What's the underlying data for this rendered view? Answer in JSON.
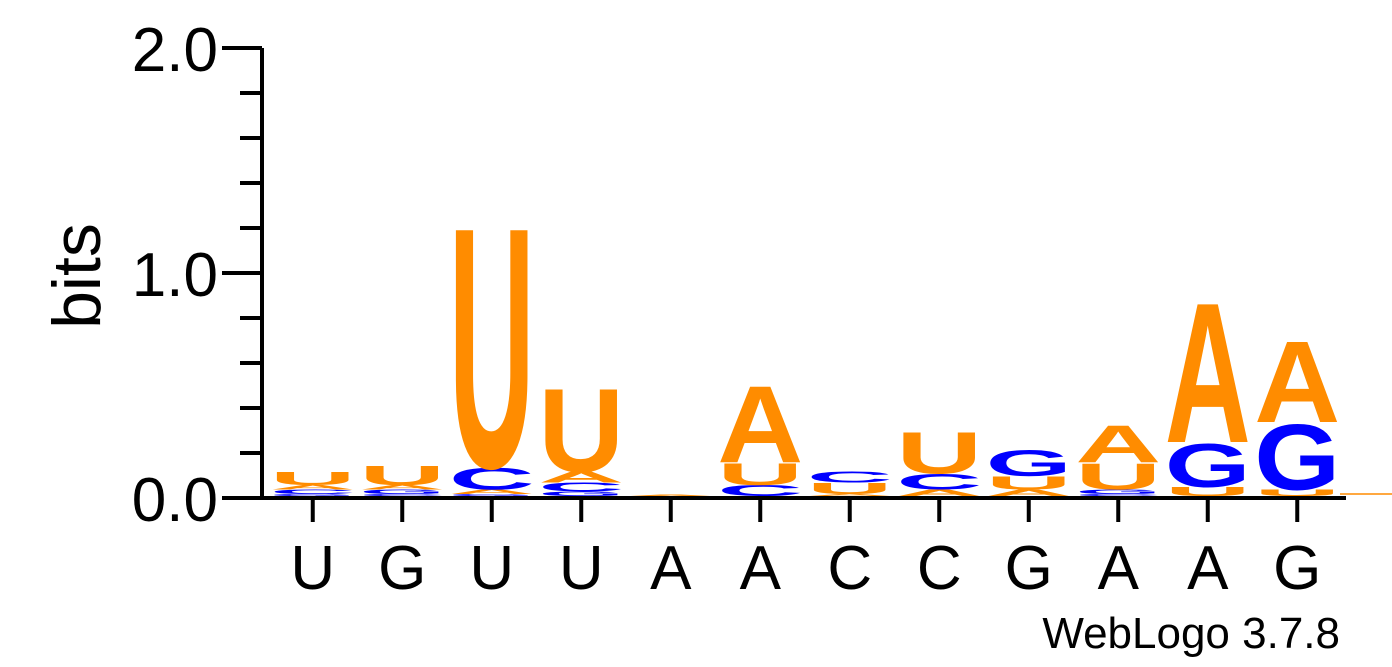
{
  "chart_data": {
    "type": "sequence-logo",
    "ylabel": "bits",
    "ylim": [
      0,
      2.0
    ],
    "y_ticks": [
      "0.0",
      "1.0",
      "2.0"
    ],
    "positions": [
      "U",
      "G",
      "U",
      "U",
      "A",
      "A",
      "C",
      "C",
      "G",
      "A",
      "A",
      "G"
    ],
    "colors": {
      "A": "#ff8c00",
      "U": "#ff8c00",
      "C": "#0000ff",
      "G": "#0000ff"
    },
    "stacks": [
      [
        {
          "letter": "G",
          "bits": 0.01
        },
        {
          "letter": "C",
          "bits": 0.02
        },
        {
          "letter": "A",
          "bits": 0.02
        },
        {
          "letter": "U",
          "bits": 0.06
        }
      ],
      [
        {
          "letter": "C",
          "bits": 0.01
        },
        {
          "letter": "G",
          "bits": 0.02
        },
        {
          "letter": "A",
          "bits": 0.02
        },
        {
          "letter": "U",
          "bits": 0.09
        }
      ],
      [
        {
          "letter": "G",
          "bits": 0.01
        },
        {
          "letter": "A",
          "bits": 0.02
        },
        {
          "letter": "C",
          "bits": 0.1
        },
        {
          "letter": "U",
          "bits": 1.1
        }
      ],
      [
        {
          "letter": "G",
          "bits": 0.02
        },
        {
          "letter": "C",
          "bits": 0.04
        },
        {
          "letter": "A",
          "bits": 0.05
        },
        {
          "letter": "U",
          "bits": 0.38
        }
      ],
      [
        {
          "letter": "A",
          "bits": 0.005
        }
      ],
      [
        {
          "letter": "C",
          "bits": 0.05
        },
        {
          "letter": "U",
          "bits": 0.1
        },
        {
          "letter": "A",
          "bits": 0.35
        }
      ],
      [
        {
          "letter": "A",
          "bits": 0.01
        },
        {
          "letter": "U",
          "bits": 0.05
        },
        {
          "letter": "C",
          "bits": 0.05
        }
      ],
      [
        {
          "letter": "A",
          "bits": 0.03
        },
        {
          "letter": "C",
          "bits": 0.07
        },
        {
          "letter": "U",
          "bits": 0.19
        }
      ],
      [
        {
          "letter": "A",
          "bits": 0.03
        },
        {
          "letter": "U",
          "bits": 0.06
        },
        {
          "letter": "G",
          "bits": 0.12
        }
      ],
      [
        {
          "letter": "C",
          "bits": 0.01
        },
        {
          "letter": "G",
          "bits": 0.02
        },
        {
          "letter": "U",
          "bits": 0.12
        },
        {
          "letter": "A",
          "bits": 0.17
        }
      ],
      [
        {
          "letter": "U",
          "bits": 0.04
        },
        {
          "letter": "G",
          "bits": 0.2
        },
        {
          "letter": "A",
          "bits": 0.64
        }
      ],
      [
        {
          "letter": "U",
          "bits": 0.03
        },
        {
          "letter": "G",
          "bits": 0.3
        },
        {
          "letter": "A",
          "bits": 0.37
        }
      ]
    ]
  },
  "footer": {
    "credit": "WebLogo 3.7.8"
  }
}
